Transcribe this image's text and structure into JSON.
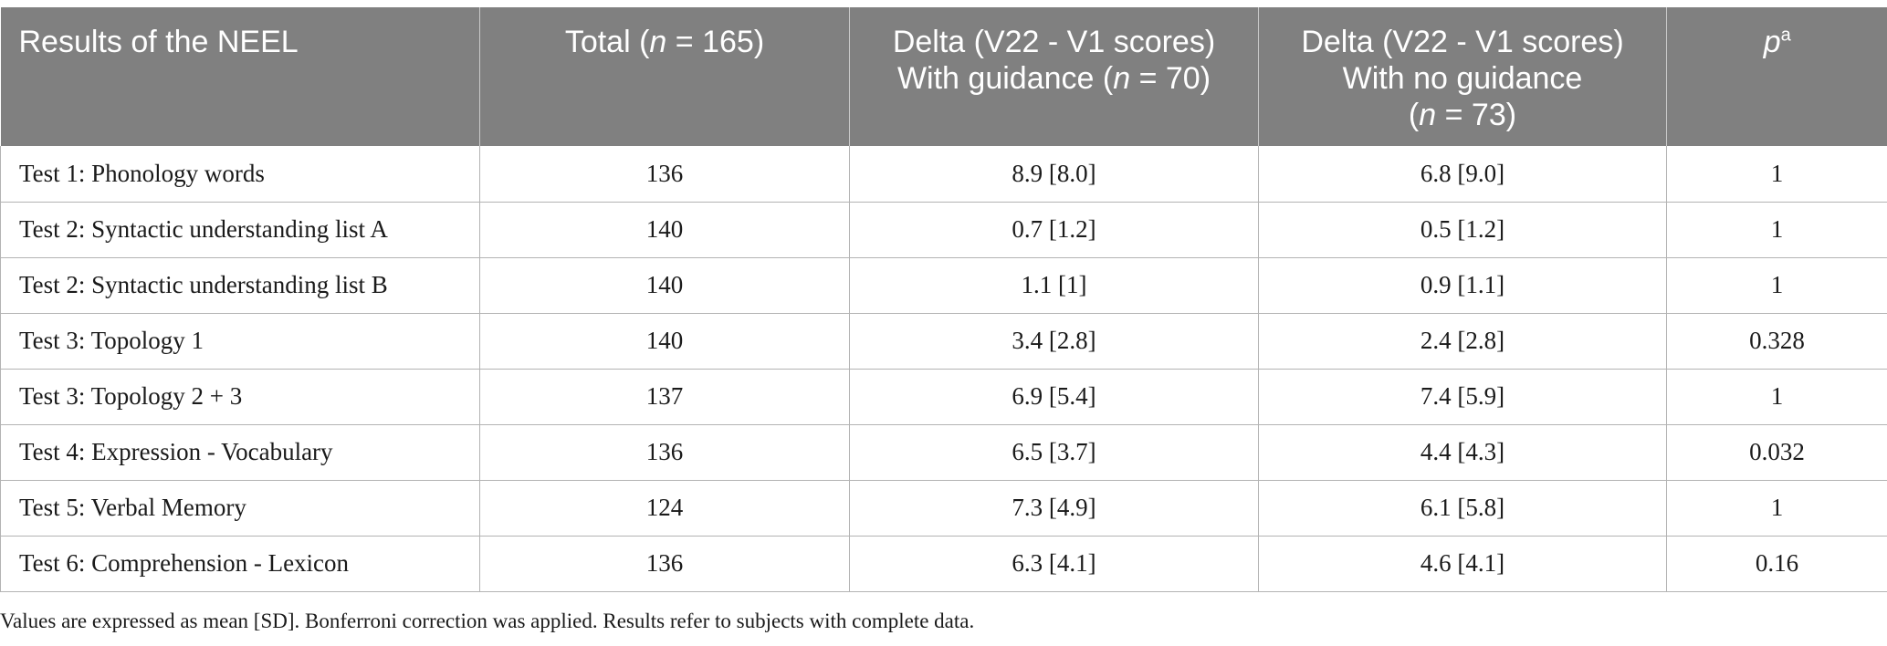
{
  "table": {
    "headers": [
      {
        "pre": "Results of the NEEL",
        "ital": "",
        "post": "",
        "line2pre": "",
        "line2ital": "",
        "line2post": "",
        "line3pre": "",
        "line3ital": "",
        "line3post": ""
      },
      {
        "pre": "Total (",
        "ital": "n",
        "post": " = 165)",
        "line2pre": "",
        "line2ital": "",
        "line2post": "",
        "line3pre": "",
        "line3ital": "",
        "line3post": ""
      },
      {
        "pre": "Delta (V22 - V1 scores)",
        "ital": "",
        "post": "",
        "line2pre": "With guidance (",
        "line2ital": "n",
        "line2post": " = 70)",
        "line3pre": "",
        "line3ital": "",
        "line3post": ""
      },
      {
        "pre": "Delta (V22 - V1 scores)",
        "ital": "",
        "post": "",
        "line2pre": "With no guidance",
        "line2ital": "",
        "line2post": "",
        "line3pre": "(",
        "line3ital": "n",
        "line3post": " = 73)"
      },
      {
        "pre": "",
        "ital": "p",
        "post": "",
        "sup": "a",
        "line2pre": "",
        "line2ital": "",
        "line2post": "",
        "line3pre": "",
        "line3ital": "",
        "line3post": ""
      }
    ],
    "rows": [
      [
        "Test 1: Phonology words",
        "136",
        "8.9 [8.0]",
        "6.8 [9.0]",
        "1"
      ],
      [
        "Test 2: Syntactic understanding list A",
        "140",
        "0.7 [1.2]",
        "0.5 [1.2]",
        "1"
      ],
      [
        "Test 2: Syntactic understanding list B",
        "140",
        "1.1 [1]",
        "0.9 [1.1]",
        "1"
      ],
      [
        "Test 3: Topology 1",
        "140",
        "3.4 [2.8]",
        "2.4 [2.8]",
        "0.328"
      ],
      [
        "Test 3: Topology 2 + 3",
        "137",
        "6.9 [5.4]",
        "7.4 [5.9]",
        "1"
      ],
      [
        "Test 4: Expression - Vocabulary",
        "136",
        "6.5 [3.7]",
        "4.4 [4.3]",
        "0.032"
      ],
      [
        "Test 5: Verbal Memory",
        "124",
        "7.3 [4.9]",
        "6.1 [5.8]",
        "1"
      ],
      [
        "Test 6: Comprehension - Lexicon",
        "136",
        "6.3 [4.1]",
        "4.6 [4.1]",
        "0.16"
      ]
    ]
  },
  "footnote": "Values are expressed as mean [SD]. Bonferroni correction was applied. Results refer to subjects with complete data.",
  "colors": {
    "header_bg": "#808080",
    "header_text": "#ffffff",
    "grid": "#b3b3b3"
  }
}
